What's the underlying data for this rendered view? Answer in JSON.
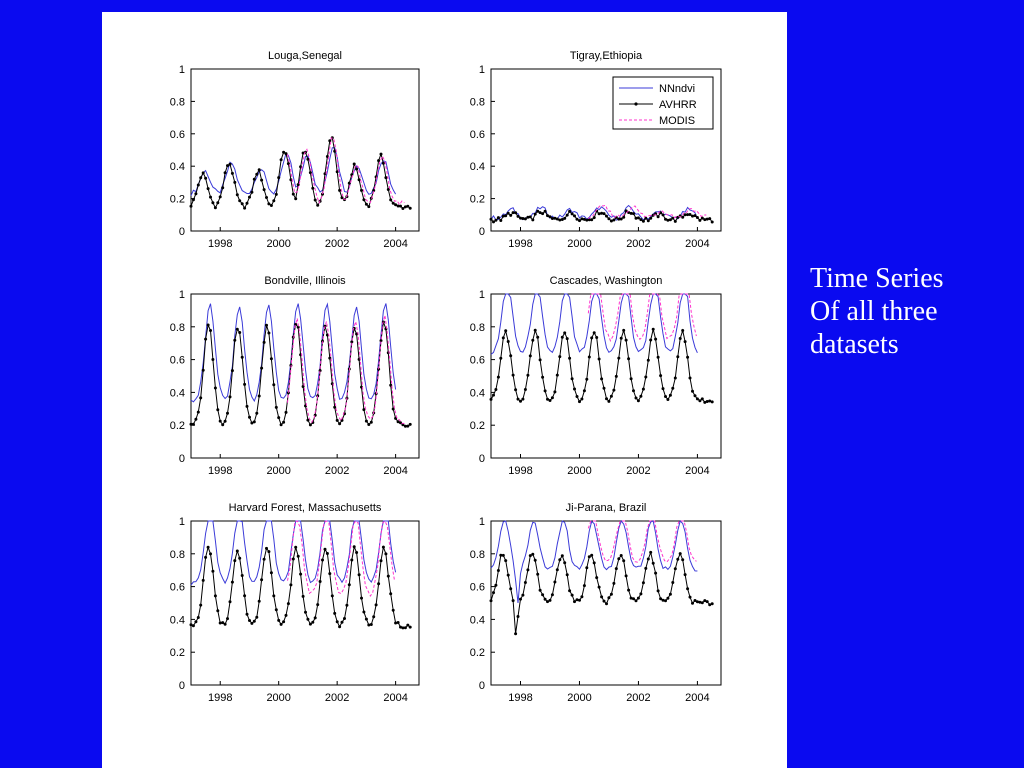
{
  "caption": {
    "line1": "Time Series",
    "line2": "Of all three",
    "line3": "datasets"
  },
  "colors": {
    "background": "#0a0af0",
    "NNndvi": "#3b3bd8",
    "AVHRR": "#000000",
    "MODIS": "#ff33cc"
  },
  "chart_data": [
    {
      "type": "line",
      "title": "Louga,Senegal",
      "xlim": [
        1997,
        2004.8
      ],
      "ylim": [
        0,
        1
      ],
      "xticks": [
        1998,
        2000,
        2002,
        2004
      ],
      "yticks": [
        0,
        0.2,
        0.4,
        0.6,
        0.8,
        1
      ],
      "season": {
        "min": 0.15,
        "peaks": [
          [
            1997.4,
            0.35
          ],
          [
            1998.3,
            0.42
          ],
          [
            1999.3,
            0.37
          ],
          [
            2000.2,
            0.5
          ],
          [
            2000.9,
            0.5
          ],
          [
            2001.8,
            0.58
          ],
          [
            2002.6,
            0.4
          ],
          [
            2003.5,
            0.46
          ]
        ]
      },
      "series": [
        {
          "name": "NNndvi",
          "x0": 1997.0,
          "x1": 2004.0,
          "mult": 0.7,
          "base": 0.23,
          "dx": 0.08
        },
        {
          "name": "AVHRR",
          "x0": 1997.0,
          "x1": 2004.5,
          "mult": 1.0,
          "base": 0.15,
          "dx": 0.0
        },
        {
          "name": "MODIS",
          "x0": 2000.3,
          "x1": 2004.3,
          "mult": 0.95,
          "base": 0.17,
          "dx": 0.05
        }
      ]
    },
    {
      "type": "line",
      "title": "Tigray,Ethiopia",
      "xlim": [
        1997,
        2004.8
      ],
      "ylim": [
        0,
        1
      ],
      "xticks": [
        1998,
        2000,
        2002,
        2004
      ],
      "yticks": [
        0,
        0.2,
        0.4,
        0.6,
        0.8,
        1
      ],
      "legend": {
        "position": "top-right",
        "entries": [
          "NNndvi",
          "AVHRR",
          "MODIS"
        ]
      },
      "season": {
        "min": 0.07,
        "peaks": [
          [
            1997.7,
            0.11
          ],
          [
            1998.7,
            0.12
          ],
          [
            1999.7,
            0.11
          ],
          [
            2000.7,
            0.12
          ],
          [
            2001.7,
            0.12
          ],
          [
            2002.7,
            0.1
          ],
          [
            2003.7,
            0.11
          ]
        ]
      },
      "series": [
        {
          "name": "NNndvi",
          "x0": 1997.0,
          "x1": 2004.0,
          "mult": 1.3,
          "base": 0.08,
          "dx": 0.0
        },
        {
          "name": "AVHRR",
          "x0": 1997.0,
          "x1": 2004.5,
          "mult": 1.0,
          "base": 0.07,
          "dx": 0.0
        },
        {
          "name": "MODIS",
          "x0": 2000.3,
          "x1": 2004.3,
          "mult": 1.25,
          "base": 0.09,
          "dx": 0.1
        }
      ]
    },
    {
      "type": "line",
      "title": "Bondville, Illinois",
      "xlim": [
        1997,
        2004.8
      ],
      "ylim": [
        0,
        1
      ],
      "xticks": [
        1998,
        2000,
        2002,
        2004
      ],
      "yticks": [
        0,
        0.2,
        0.4,
        0.6,
        0.8,
        1
      ],
      "season": {
        "min": 0.2,
        "peaks": [
          [
            1997.6,
            0.81
          ],
          [
            1998.6,
            0.8
          ],
          [
            1999.6,
            0.81
          ],
          [
            2000.6,
            0.83
          ],
          [
            2001.6,
            0.81
          ],
          [
            2002.6,
            0.8
          ],
          [
            2003.6,
            0.83
          ]
        ]
      },
      "series": [
        {
          "name": "NNndvi",
          "x0": 1997.0,
          "x1": 2004.0,
          "mult": 0.95,
          "base": 0.35,
          "dx": 0.05
        },
        {
          "name": "AVHRR",
          "x0": 1997.0,
          "x1": 2004.5,
          "mult": 1.0,
          "base": 0.2,
          "dx": 0.0
        },
        {
          "name": "MODIS",
          "x0": 2000.3,
          "x1": 2004.3,
          "mult": 1.02,
          "base": 0.22,
          "dx": 0.02
        }
      ]
    },
    {
      "type": "line",
      "title": "Cascades, Washington",
      "xlim": [
        1997,
        2004.8
      ],
      "ylim": [
        0,
        1
      ],
      "xticks": [
        1998,
        2000,
        2002,
        2004
      ],
      "yticks": [
        0,
        0.2,
        0.4,
        0.6,
        0.8,
        1
      ],
      "season": {
        "min": 0.38,
        "peaks": [
          [
            1997.5,
            0.8
          ],
          [
            1998.5,
            0.8
          ],
          [
            1999.5,
            0.8
          ],
          [
            2000.5,
            0.8
          ],
          [
            2001.5,
            0.8
          ],
          [
            2002.5,
            0.8
          ],
          [
            2003.5,
            0.8
          ]
        ]
      },
      "series": [
        {
          "name": "NNndvi",
          "x0": 1997.0,
          "x1": 2004.0,
          "mult": 1.0,
          "base": 0.64,
          "dx": 0.05
        },
        {
          "name": "AVHRR",
          "x0": 1997.0,
          "x1": 2004.5,
          "mult": 1.0,
          "base": 0.35,
          "dx": 0.0
        },
        {
          "name": "MODIS",
          "x0": 2000.3,
          "x1": 2004.0,
          "mult": 1.08,
          "base": 0.72,
          "dx": 0.05
        }
      ]
    },
    {
      "type": "line",
      "title": "Harvard Forest, Massachusetts",
      "xlim": [
        1997,
        2004.8
      ],
      "ylim": [
        0,
        1
      ],
      "xticks": [
        1998,
        2000,
        2002,
        2004
      ],
      "yticks": [
        0,
        0.2,
        0.4,
        0.6,
        0.8,
        1
      ],
      "season": {
        "min": 0.36,
        "peaks": [
          [
            1997.6,
            0.84
          ],
          [
            1998.6,
            0.82
          ],
          [
            1999.6,
            0.84
          ],
          [
            2000.6,
            0.83
          ],
          [
            2001.6,
            0.84
          ],
          [
            2002.6,
            0.83
          ],
          [
            2003.6,
            0.83
          ]
        ]
      },
      "series": [
        {
          "name": "NNndvi",
          "x0": 1997.0,
          "x1": 2004.0,
          "mult": 0.98,
          "base": 0.62,
          "dx": 0.05
        },
        {
          "name": "AVHRR",
          "x0": 1997.0,
          "x1": 2004.5,
          "mult": 1.0,
          "base": 0.36,
          "dx": 0.0
        },
        {
          "name": "MODIS",
          "x0": 2000.3,
          "x1": 2004.0,
          "mult": 1.04,
          "base": 0.55,
          "dx": 0.03
        }
      ]
    },
    {
      "type": "line",
      "title": "Ji-Parana, Brazil",
      "xlim": [
        1997,
        2004.8
      ],
      "ylim": [
        0,
        1
      ],
      "xticks": [
        1998,
        2000,
        2002,
        2004
      ],
      "yticks": [
        0,
        0.2,
        0.4,
        0.6,
        0.8,
        1
      ],
      "season": {
        "min": 0.5,
        "peaks": [
          [
            1997.4,
            0.8
          ],
          [
            1998.4,
            0.8
          ],
          [
            1999.4,
            0.8
          ],
          [
            2000.4,
            0.8
          ],
          [
            2001.4,
            0.8
          ],
          [
            2002.4,
            0.8
          ],
          [
            2003.4,
            0.8
          ]
        ]
      },
      "dip": {
        "x": 1997.85,
        "y": 0.29
      },
      "series": [
        {
          "name": "NNndvi",
          "x0": 1997.0,
          "x1": 2004.0,
          "mult": 1.03,
          "base": 0.7,
          "dx": 0.05
        },
        {
          "name": "AVHRR",
          "x0": 1997.0,
          "x1": 2004.5,
          "mult": 1.0,
          "base": 0.5,
          "dx": 0.0
        },
        {
          "name": "MODIS",
          "x0": 2000.3,
          "x1": 2004.0,
          "mult": 1.04,
          "base": 0.75,
          "dx": 0.05
        }
      ]
    }
  ]
}
